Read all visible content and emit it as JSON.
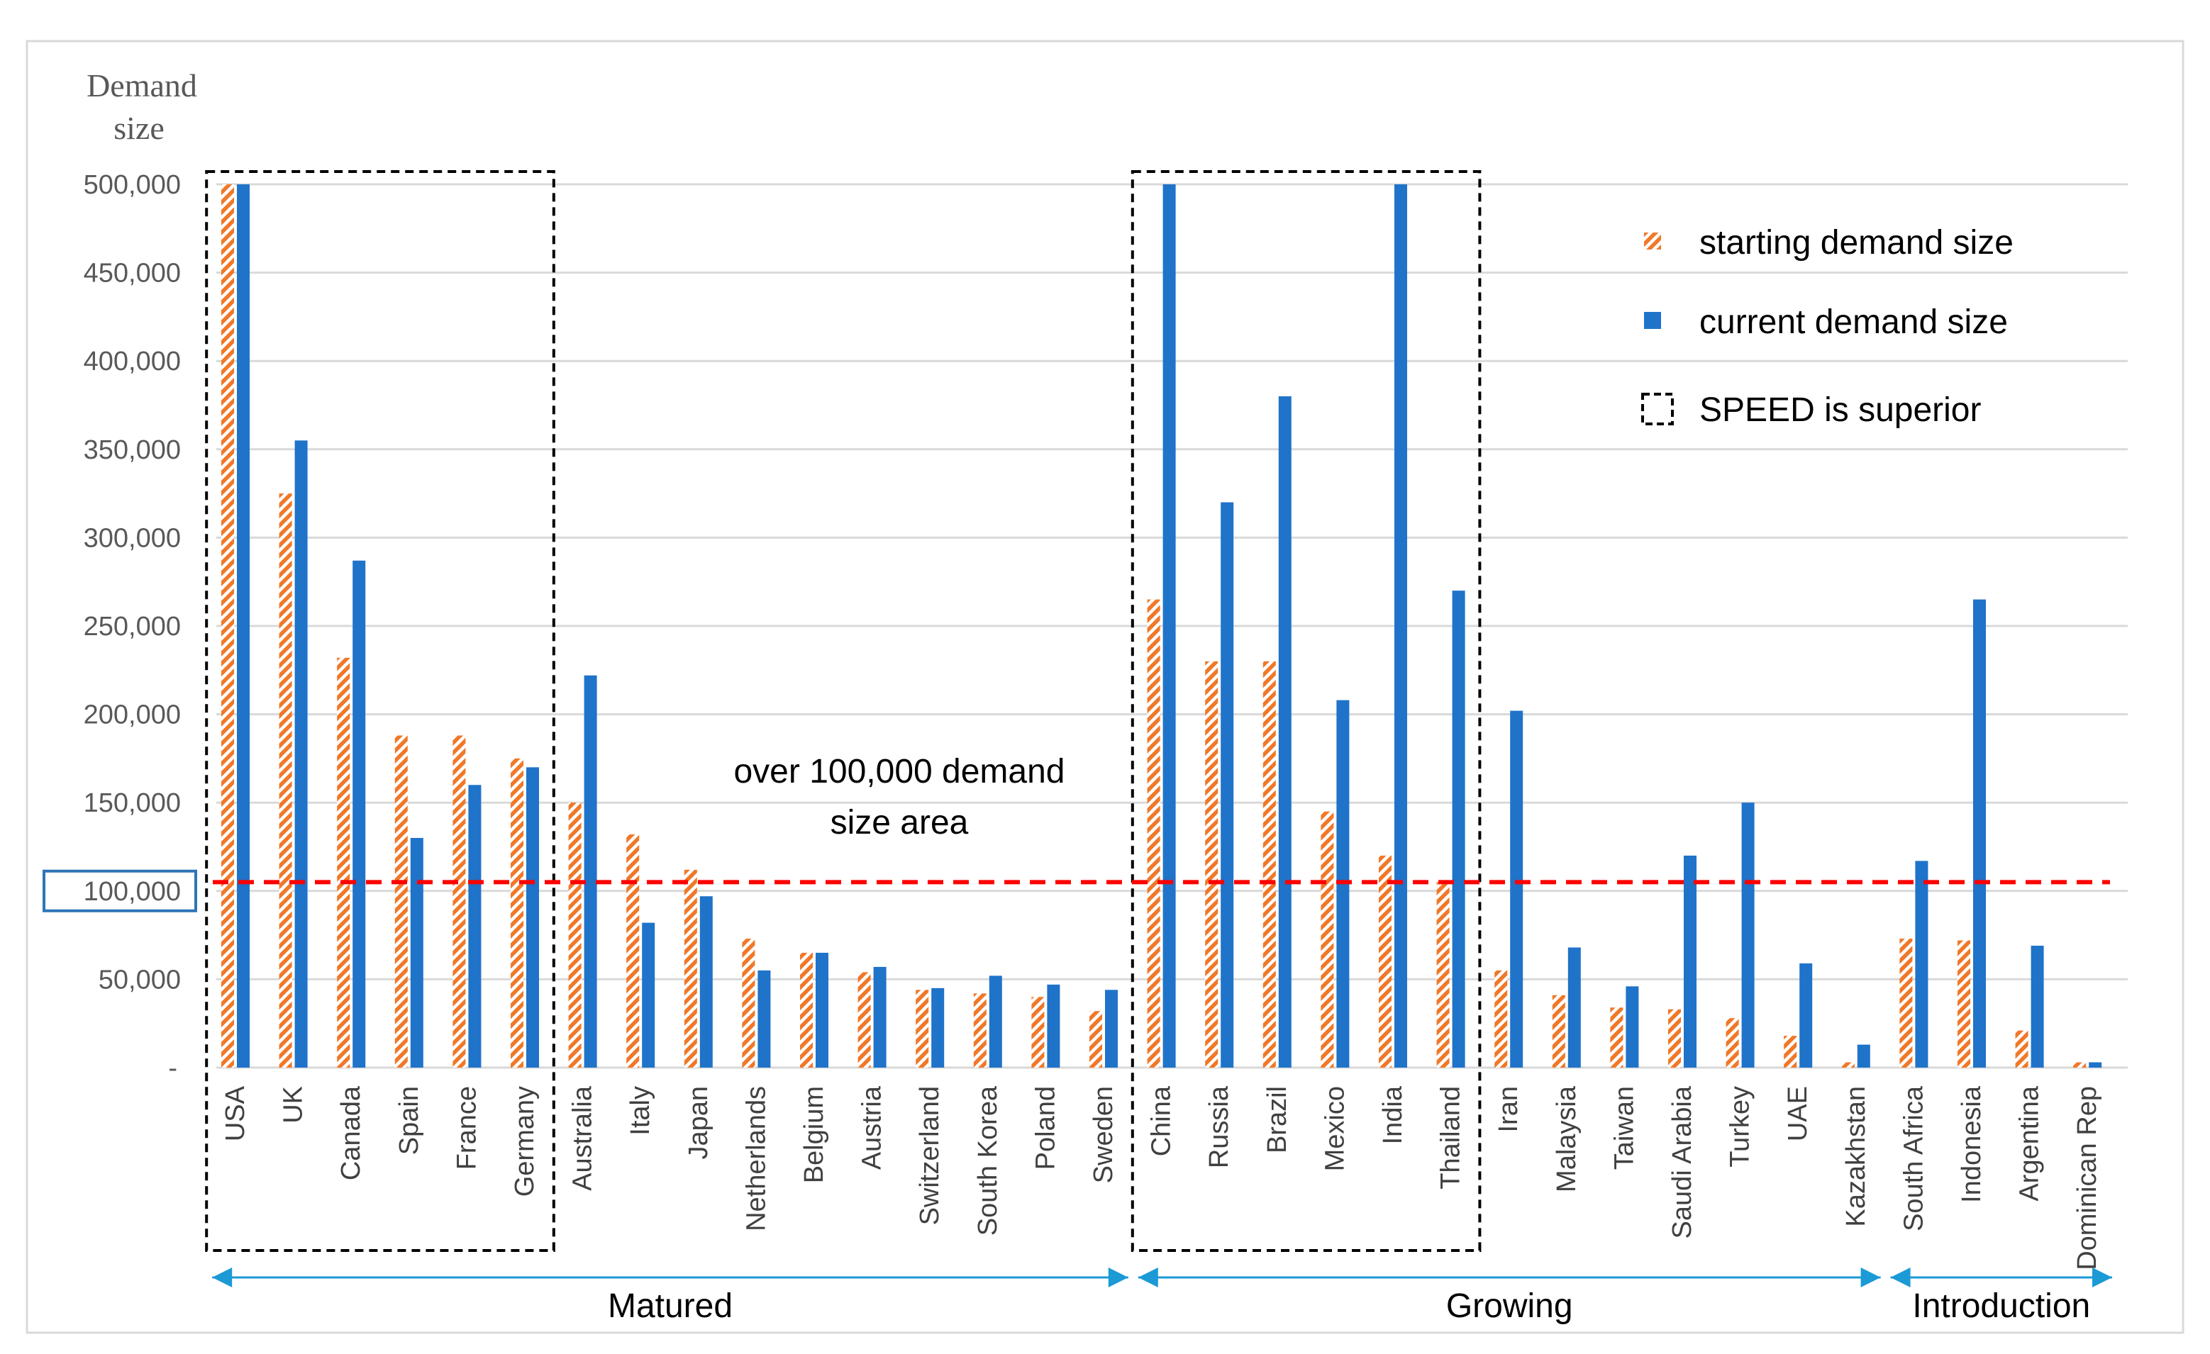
{
  "chart_data": {
    "type": "bar",
    "ylabel": "Demand size",
    "ylim": [
      0,
      500000
    ],
    "yticks": [
      "-",
      "50,000",
      "100,000",
      "150,000",
      "200,000",
      "250,000",
      "300,000",
      "350,000",
      "400,000",
      "450,000",
      "500,000"
    ],
    "highlighted_tick": "100,000",
    "categories": [
      "USA",
      "UK",
      "Canada",
      "Spain",
      "France",
      "Germany",
      "Australia",
      "Italy",
      "Japan",
      "Netherlands",
      "Belgium",
      "Austria",
      "Switzerland",
      "South Korea",
      "Poland",
      "Sweden",
      "China",
      "Russia",
      "Brazil",
      "Mexico",
      "India",
      "Thailand",
      "Iran",
      "Malaysia",
      "Taiwan",
      "Saudi Arabia",
      "Turkey",
      "UAE",
      "Kazakhstan",
      "South Africa",
      "Indonesia",
      "Argentina",
      "Dominican Rep"
    ],
    "series": [
      {
        "name": "starting demand size",
        "color": "#f07828",
        "pattern": "hatched",
        "values": [
          500000,
          325000,
          232000,
          188000,
          188000,
          175000,
          150000,
          132000,
          112000,
          73000,
          65000,
          54000,
          44000,
          42000,
          40000,
          32000,
          265000,
          230000,
          230000,
          145000,
          120000,
          105000,
          55000,
          41000,
          34000,
          33000,
          28000,
          18000,
          3000,
          73000,
          72000,
          21000,
          3000
        ]
      },
      {
        "name": "current demand size",
        "color": "#1f73c9",
        "pattern": "solid",
        "values": [
          500000,
          355000,
          287000,
          130000,
          160000,
          170000,
          222000,
          82000,
          97000,
          55000,
          65000,
          57000,
          45000,
          52000,
          47000,
          44000,
          500000,
          320000,
          380000,
          208000,
          500000,
          270000,
          202000,
          68000,
          46000,
          120000,
          150000,
          59000,
          13000,
          117000,
          265000,
          69000,
          3000
        ]
      }
    ],
    "reference_line": {
      "value": 105000,
      "color": "#ff0000"
    },
    "annotation": [
      "over 100,000 demand",
      "size area"
    ],
    "legend": {
      "position": "top-right",
      "items": [
        {
          "label": "starting demand size",
          "marker": "hatched"
        },
        {
          "label": "current demand size",
          "marker": "solid"
        },
        {
          "label": "SPEED is superior",
          "marker": "dashed-box"
        }
      ]
    },
    "highlight_groups": [
      {
        "label": "SPEED is superior",
        "first": "USA",
        "last": "Germany"
      },
      {
        "label": "SPEED is superior",
        "first": "China",
        "last": "Thailand"
      }
    ],
    "stages": [
      {
        "label": "Matured",
        "first": "USA",
        "last": "Sweden"
      },
      {
        "label": "Growing",
        "first": "China",
        "last": "Kazakhstan"
      },
      {
        "label": "Introduction",
        "first": "South Africa",
        "last": "Dominican Rep"
      }
    ]
  }
}
